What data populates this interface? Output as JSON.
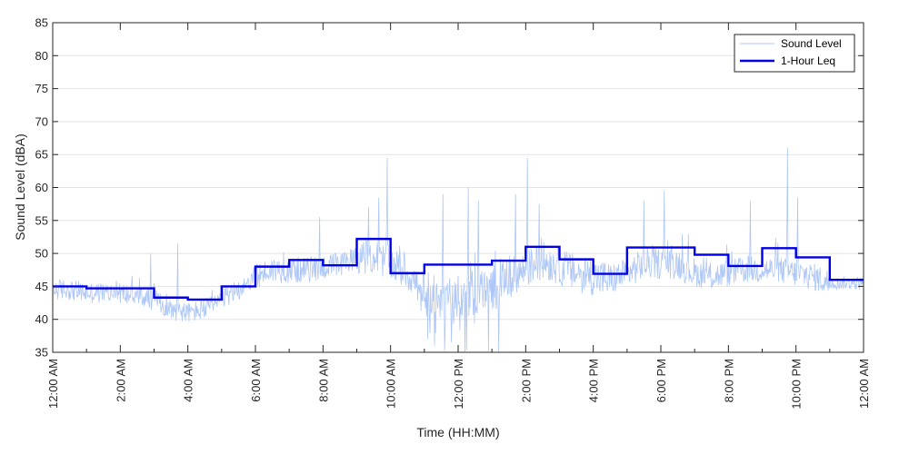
{
  "chart_data": {
    "type": "line",
    "title": "",
    "xlabel": "Time (HH:MM)",
    "ylabel": "Sound Level (dBA)",
    "xlim": [
      0,
      24
    ],
    "ylim": [
      35,
      85
    ],
    "y_ticks": [
      35,
      40,
      45,
      50,
      55,
      60,
      65,
      70,
      75,
      80,
      85
    ],
    "x_ticks": [
      0,
      2,
      4,
      6,
      8,
      10,
      12,
      14,
      16,
      18,
      20,
      22,
      24
    ],
    "x_tick_labels": [
      "12:00 AM",
      "2:00 AM",
      "4:00 AM",
      "6:00 AM",
      "8:00 AM",
      "10:00 AM",
      "12:00 PM",
      "2:00 PM",
      "4:00 PM",
      "6:00 PM",
      "8:00 PM",
      "10:00 PM",
      "12:00 AM"
    ],
    "grid": "horizontal",
    "legend_position": "top-right",
    "series": [
      {
        "name": "Sound Level",
        "style": "thin-line",
        "color": "#aec7f7",
        "base_profile": {
          "x": [
            0,
            0.5,
            1,
            2,
            2.5,
            3,
            3.5,
            4,
            4.5,
            5,
            5.5,
            6,
            6.5,
            7,
            7.5,
            8,
            8.5,
            9,
            9.5,
            10,
            10.5,
            11,
            11.5,
            12,
            12.5,
            13,
            13.5,
            14,
            14.5,
            15,
            15.5,
            16,
            16.5,
            17,
            17.5,
            18,
            18.5,
            19,
            19.5,
            20,
            20.5,
            21,
            21.5,
            22,
            22.5,
            23,
            23.5,
            24
          ],
          "y": [
            44.5,
            44.5,
            44,
            44,
            43.5,
            43,
            41.5,
            41,
            41.5,
            43,
            44.5,
            46.5,
            47.5,
            47.5,
            47.5,
            48,
            48,
            49.5,
            49.5,
            48.5,
            47,
            44,
            43,
            44,
            44,
            45,
            46.5,
            47.5,
            49,
            48,
            47,
            46.5,
            46,
            47,
            48.5,
            48.5,
            48.5,
            47,
            46.5,
            47,
            47.5,
            47.5,
            47.5,
            47,
            46.5,
            45.5,
            45.5,
            45.5
          ]
        },
        "peaks": [
          {
            "x": 2.9,
            "y": 50
          },
          {
            "x": 3.7,
            "y": 51.5
          },
          {
            "x": 7.9,
            "y": 55.5
          },
          {
            "x": 9.35,
            "y": 57
          },
          {
            "x": 9.65,
            "y": 58.5
          },
          {
            "x": 9.9,
            "y": 64.5
          },
          {
            "x": 11.55,
            "y": 59
          },
          {
            "x": 12.3,
            "y": 60
          },
          {
            "x": 12.6,
            "y": 58
          },
          {
            "x": 13.7,
            "y": 59
          },
          {
            "x": 14.05,
            "y": 64.5
          },
          {
            "x": 14.4,
            "y": 57.5
          },
          {
            "x": 17.5,
            "y": 58
          },
          {
            "x": 18.1,
            "y": 59.5
          },
          {
            "x": 20.65,
            "y": 58
          },
          {
            "x": 21.75,
            "y": 66
          },
          {
            "x": 22.05,
            "y": 58.5
          }
        ],
        "dips": [
          {
            "x": 11.1,
            "y": 37
          },
          {
            "x": 11.3,
            "y": 36
          },
          {
            "x": 11.6,
            "y": 35.2
          },
          {
            "x": 12.2,
            "y": 35
          },
          {
            "x": 12.9,
            "y": 35.1
          },
          {
            "x": 13.2,
            "y": 35
          }
        ]
      },
      {
        "name": "1-Hour Leq",
        "style": "step",
        "color": "#0000e6",
        "hours": [
          0,
          1,
          2,
          3,
          4,
          5,
          6,
          7,
          8,
          9,
          10,
          11,
          12,
          13,
          14,
          15,
          16,
          17,
          18,
          19,
          20,
          21,
          22,
          23
        ],
        "values": [
          45,
          44.7,
          44.7,
          43.3,
          43,
          45,
          48,
          49,
          48.2,
          52.2,
          47,
          48.3,
          48.3,
          48.9,
          51,
          49.1,
          46.9,
          50.9,
          50.9,
          49.8,
          48.1,
          50.8,
          49.4,
          46
        ]
      }
    ]
  }
}
